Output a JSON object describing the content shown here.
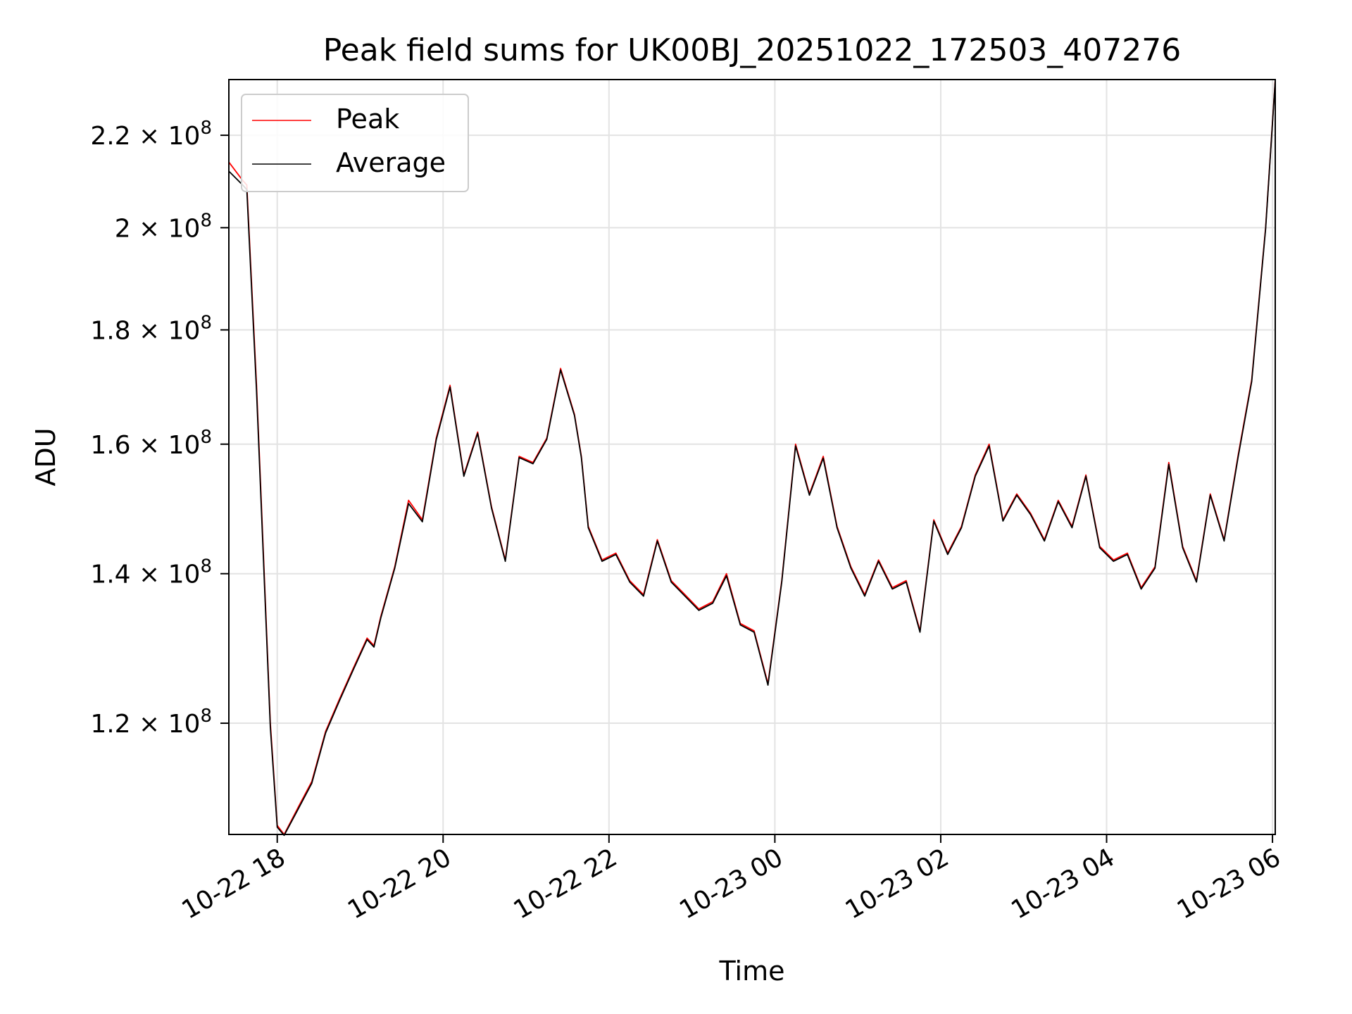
{
  "chart_data": {
    "type": "line",
    "title": "Peak field sums for UK00BJ_20251022_172503_407276",
    "xlabel": "Time",
    "ylabel": "ADU",
    "xlim": [
      "2025-10-22T17:25",
      "2025-10-23T06:02"
    ],
    "ylim": [
      107000000,
      233000000
    ],
    "yscale": "log",
    "grid": true,
    "legend_position": "top-left",
    "x_ticks": [
      {
        "value": "2025-10-22T18:00",
        "label": "10-22 18"
      },
      {
        "value": "2025-10-22T20:00",
        "label": "10-22 20"
      },
      {
        "value": "2025-10-22T22:00",
        "label": "10-22 22"
      },
      {
        "value": "2025-10-23T00:00",
        "label": "10-23 00"
      },
      {
        "value": "2025-10-23T02:00",
        "label": "10-23 02"
      },
      {
        "value": "2025-10-23T04:00",
        "label": "10-23 04"
      },
      {
        "value": "2025-10-23T06:00",
        "label": "10-23 06"
      }
    ],
    "y_ticks": [
      {
        "value": 120000000,
        "mant": "1.2",
        "exp": "8"
      },
      {
        "value": 140000000,
        "mant": "1.4",
        "exp": "8"
      },
      {
        "value": 160000000,
        "mant": "1.6",
        "exp": "8"
      },
      {
        "value": 180000000,
        "mant": "1.8",
        "exp": "8"
      },
      {
        "value": 200000000,
        "mant": "2",
        "exp": "8"
      },
      {
        "value": 220000000,
        "mant": "2.2",
        "exp": "8"
      }
    ],
    "series": [
      {
        "name": "Peak",
        "color": "#ff0000",
        "x": [
          "2025-10-22T17:25",
          "2025-10-22T17:35",
          "2025-10-22T17:38",
          "2025-10-22T17:45",
          "2025-10-22T17:55",
          "2025-10-22T18:00",
          "2025-10-22T18:05",
          "2025-10-22T18:15",
          "2025-10-22T18:25",
          "2025-10-22T18:35",
          "2025-10-22T18:45",
          "2025-10-22T18:55",
          "2025-10-22T19:05",
          "2025-10-22T19:10",
          "2025-10-22T19:15",
          "2025-10-22T19:25",
          "2025-10-22T19:35",
          "2025-10-22T19:45",
          "2025-10-22T19:55",
          "2025-10-22T20:05",
          "2025-10-22T20:15",
          "2025-10-22T20:25",
          "2025-10-22T20:35",
          "2025-10-22T20:45",
          "2025-10-22T20:55",
          "2025-10-22T21:05",
          "2025-10-22T21:15",
          "2025-10-22T21:25",
          "2025-10-22T21:35",
          "2025-10-22T21:40",
          "2025-10-22T21:45",
          "2025-10-22T21:55",
          "2025-10-22T22:05",
          "2025-10-22T22:15",
          "2025-10-22T22:25",
          "2025-10-22T22:35",
          "2025-10-22T22:45",
          "2025-10-22T22:55",
          "2025-10-22T23:05",
          "2025-10-22T23:15",
          "2025-10-22T23:25",
          "2025-10-22T23:35",
          "2025-10-22T23:45",
          "2025-10-22T23:55",
          "2025-10-23T00:05",
          "2025-10-23T00:15",
          "2025-10-23T00:25",
          "2025-10-23T00:35",
          "2025-10-23T00:45",
          "2025-10-23T00:55",
          "2025-10-23T01:05",
          "2025-10-23T01:15",
          "2025-10-23T01:25",
          "2025-10-23T01:35",
          "2025-10-23T01:45",
          "2025-10-23T01:55",
          "2025-10-23T02:05",
          "2025-10-23T02:15",
          "2025-10-23T02:25",
          "2025-10-23T02:35",
          "2025-10-23T02:45",
          "2025-10-23T02:55",
          "2025-10-23T03:05",
          "2025-10-23T03:15",
          "2025-10-23T03:25",
          "2025-10-23T03:35",
          "2025-10-23T03:45",
          "2025-10-23T03:55",
          "2025-10-23T04:05",
          "2025-10-23T04:15",
          "2025-10-23T04:25",
          "2025-10-23T04:35",
          "2025-10-23T04:45",
          "2025-10-23T04:55",
          "2025-10-23T05:05",
          "2025-10-23T05:15",
          "2025-10-23T05:25",
          "2025-10-23T05:35",
          "2025-10-23T05:45",
          "2025-10-23T05:55",
          "2025-10-23T06:02"
        ],
        "values": [
          214000000,
          210000000,
          209000000,
          170000000,
          120000000,
          108000000,
          107000000,
          110000000,
          113000000,
          119000000,
          123000000,
          127000000,
          131000000,
          130000000,
          134000000,
          141000000,
          151000000,
          148000000,
          161000000,
          170000000,
          155000000,
          162000000,
          150000000,
          142000000,
          158000000,
          157000000,
          161000000,
          173000000,
          165000000,
          158000000,
          147000000,
          142000000,
          143000000,
          139000000,
          137000000,
          145000000,
          139000000,
          137000000,
          135000000,
          136000000,
          140000000,
          133000000,
          132000000,
          125000000,
          139000000,
          160000000,
          152000000,
          158000000,
          147000000,
          141000000,
          137000000,
          142000000,
          138000000,
          139000000,
          132000000,
          148000000,
          143000000,
          147000000,
          155000000,
          160000000,
          148000000,
          152000000,
          149000000,
          145000000,
          151000000,
          147000000,
          155000000,
          144000000,
          142000000,
          143000000,
          138000000,
          141000000,
          157000000,
          144000000,
          139000000,
          152000000,
          145000000,
          158000000,
          171000000,
          200000000,
          233000000
        ]
      },
      {
        "name": "Average",
        "color": "#000000",
        "x": [
          "2025-10-22T17:25",
          "2025-10-22T17:35",
          "2025-10-22T17:38",
          "2025-10-22T17:45",
          "2025-10-22T17:55",
          "2025-10-22T18:00",
          "2025-10-22T18:05",
          "2025-10-22T18:15",
          "2025-10-22T18:25",
          "2025-10-22T18:35",
          "2025-10-22T18:45",
          "2025-10-22T18:55",
          "2025-10-22T19:05",
          "2025-10-22T19:10",
          "2025-10-22T19:15",
          "2025-10-22T19:25",
          "2025-10-22T19:35",
          "2025-10-22T19:45",
          "2025-10-22T19:55",
          "2025-10-22T20:05",
          "2025-10-22T20:15",
          "2025-10-22T20:25",
          "2025-10-22T20:35",
          "2025-10-22T20:45",
          "2025-10-22T20:55",
          "2025-10-22T21:05",
          "2025-10-22T21:15",
          "2025-10-22T21:25",
          "2025-10-22T21:35",
          "2025-10-22T21:40",
          "2025-10-22T21:45",
          "2025-10-22T21:55",
          "2025-10-22T22:05",
          "2025-10-22T22:15",
          "2025-10-22T22:25",
          "2025-10-22T22:35",
          "2025-10-22T22:45",
          "2025-10-22T22:55",
          "2025-10-22T23:05",
          "2025-10-22T23:15",
          "2025-10-22T23:25",
          "2025-10-22T23:35",
          "2025-10-22T23:45",
          "2025-10-22T23:55",
          "2025-10-23T00:05",
          "2025-10-23T00:15",
          "2025-10-23T00:25",
          "2025-10-23T00:35",
          "2025-10-23T00:45",
          "2025-10-23T00:55",
          "2025-10-23T01:05",
          "2025-10-23T01:15",
          "2025-10-23T01:25",
          "2025-10-23T01:35",
          "2025-10-23T01:45",
          "2025-10-23T01:55",
          "2025-10-23T02:05",
          "2025-10-23T02:15",
          "2025-10-23T02:25",
          "2025-10-23T02:35",
          "2025-10-23T02:45",
          "2025-10-23T02:55",
          "2025-10-23T03:05",
          "2025-10-23T03:15",
          "2025-10-23T03:25",
          "2025-10-23T03:35",
          "2025-10-23T03:45",
          "2025-10-23T03:55",
          "2025-10-23T04:05",
          "2025-10-23T04:15",
          "2025-10-23T04:25",
          "2025-10-23T04:35",
          "2025-10-23T04:45",
          "2025-10-23T04:55",
          "2025-10-23T05:05",
          "2025-10-23T05:15",
          "2025-10-23T05:25",
          "2025-10-23T05:35",
          "2025-10-23T05:45",
          "2025-10-23T05:55",
          "2025-10-23T06:02"
        ],
        "values": [
          212000000,
          209000000,
          208000000,
          169000000,
          119500000,
          107800000,
          106900000,
          109800000,
          112800000,
          118800000,
          122800000,
          126800000,
          130800000,
          129800000,
          133800000,
          140800000,
          150500000,
          147700000,
          160700000,
          169700000,
          154800000,
          161800000,
          149800000,
          141800000,
          157800000,
          156800000,
          160800000,
          172700000,
          164800000,
          157800000,
          146800000,
          141800000,
          142800000,
          138800000,
          136800000,
          144800000,
          138800000,
          136800000,
          134800000,
          135800000,
          139700000,
          132800000,
          131800000,
          124800000,
          138800000,
          159700000,
          151800000,
          157700000,
          146800000,
          140800000,
          136800000,
          141800000,
          137800000,
          138800000,
          131800000,
          147800000,
          142800000,
          146800000,
          154800000,
          159700000,
          147800000,
          151800000,
          148800000,
          144800000,
          150800000,
          146800000,
          154800000,
          143800000,
          141800000,
          142800000,
          137800000,
          140800000,
          156700000,
          143800000,
          138800000,
          151800000,
          144800000,
          157700000,
          170700000,
          199700000,
          232800000
        ]
      }
    ]
  }
}
